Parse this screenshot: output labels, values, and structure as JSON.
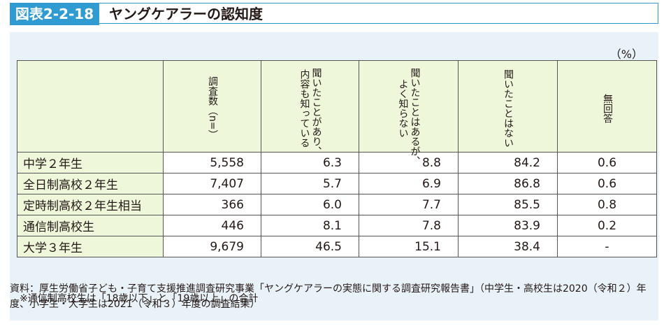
{
  "figure": {
    "number": "図表2-2-18",
    "title": "ヤングケアラーの認知度"
  },
  "unit": "（%）",
  "table": {
    "columns": [
      "調査数（n=）",
      "聞いたことがあり、\n内容も知っている",
      "聞いたことはあるが、\nよく知らない",
      "聞いたことはない",
      "無回答"
    ],
    "rows": [
      {
        "label": "中学２年生",
        "values": [
          "5,558",
          "6.3",
          "8.8",
          "84.2",
          "0.6"
        ]
      },
      {
        "label": "全日制高校２年生",
        "values": [
          "7,407",
          "5.7",
          "6.9",
          "86.8",
          "0.6"
        ]
      },
      {
        "label": "定時制高校２年生相当",
        "values": [
          "366",
          "6.0",
          "7.7",
          "85.5",
          "0.8"
        ]
      },
      {
        "label": "通信制高校生",
        "values": [
          "446",
          "8.1",
          "7.8",
          "83.9",
          "0.2"
        ]
      },
      {
        "label": "大学３年生",
        "values": [
          "9,679",
          "46.5",
          "15.1",
          "38.4",
          "-"
        ]
      }
    ]
  },
  "note": "※通信制高校生は「18歳以下」と「19歳以上」の合計",
  "source": "資料：厚生労働省子ども・子育て支援推進調査研究事業「ヤングケアラーの実態に関する調査研究報告書」（中学生・高校生は2020（令和２）年度、小学生・大学生は2021（令和３）年度の調査結果）"
}
